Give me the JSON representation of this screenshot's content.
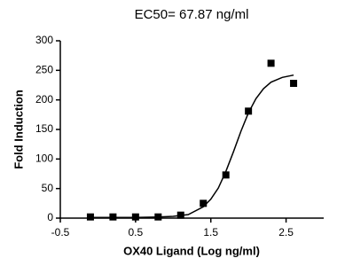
{
  "chart_data": {
    "type": "scatter",
    "title": "EC50= 67.87 ng/ml",
    "x_label": "OX40 Ligand (Log ng/ml)",
    "y_label": "Fold Induction",
    "xlim": [
      -0.5,
      3
    ],
    "xticks": [
      -0.5,
      0.5,
      1.5,
      2.5
    ],
    "ylim": [
      0,
      300
    ],
    "yticks": [
      0,
      50,
      100,
      150,
      200,
      250,
      300
    ],
    "series": [
      {
        "mode": "markers",
        "color": "#000000",
        "x": [
          -0.1,
          0.2,
          0.5,
          0.8,
          1.1,
          1.4,
          1.7,
          2.0,
          2.3,
          2.6
        ],
        "values": [
          2,
          2,
          2,
          2,
          5,
          25,
          73,
          181,
          262,
          228
        ]
      },
      {
        "mode": "line",
        "color": "#000000",
        "x": [
          -0.1,
          0.5,
          0.8,
          1.0,
          1.2,
          1.4,
          1.5,
          1.6,
          1.7,
          1.8,
          1.9,
          2.0,
          2.1,
          2.2,
          2.3,
          2.45,
          2.6
        ],
        "values": [
          1,
          1,
          2,
          3,
          6,
          19,
          32,
          51,
          79,
          112,
          147,
          178,
          202,
          219,
          230,
          238,
          242
        ]
      }
    ]
  }
}
